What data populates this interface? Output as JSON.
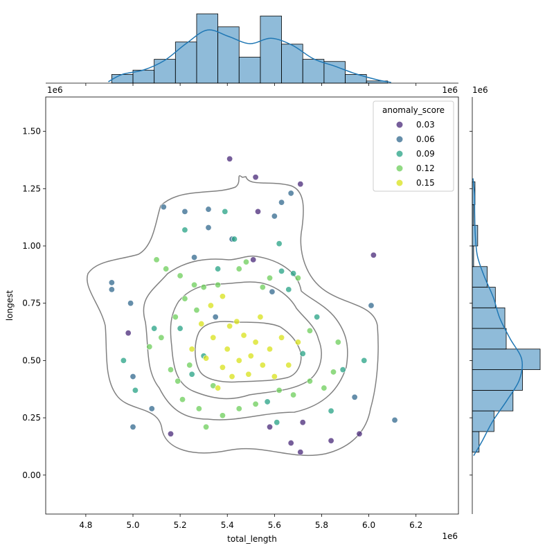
{
  "chart_data": {
    "type": "scatter",
    "subtype": "jointplot",
    "xlabel": "total_length",
    "ylabel": "longest",
    "x_offset_label": "1e6",
    "y_offset_label": "1e6",
    "xlim": [
      4.63,
      6.38
    ],
    "ylim": [
      -0.17,
      1.65
    ],
    "x_ticks": [
      "4.8",
      "5.0",
      "5.2",
      "5.4",
      "5.6",
      "5.8",
      "6.0",
      "6.2"
    ],
    "y_ticks": [
      "0.00",
      "0.25",
      "0.50",
      "0.75",
      "1.00",
      "1.25",
      "1.50"
    ],
    "legend": {
      "title": "anomaly_score",
      "placement": "top-right",
      "entries": [
        {
          "label": "0.03",
          "color": "#482878"
        },
        {
          "label": "0.06",
          "color": "#31688e"
        },
        {
          "label": "0.09",
          "color": "#26a184"
        },
        {
          "label": "0.12",
          "color": "#6cce59"
        },
        {
          "label": "0.15",
          "color": "#d8e219"
        }
      ]
    },
    "points": [
      [
        5.41,
        1.38,
        0.03
      ],
      [
        5.52,
        1.3,
        0.03
      ],
      [
        5.71,
        1.27,
        0.03
      ],
      [
        5.53,
        1.15,
        0.03
      ],
      [
        6.02,
        0.96,
        0.03
      ],
      [
        4.98,
        0.62,
        0.03
      ],
      [
        5.51,
        0.94,
        0.03
      ],
      [
        5.16,
        0.18,
        0.03
      ],
      [
        5.58,
        0.21,
        0.03
      ],
      [
        5.67,
        0.14,
        0.03
      ],
      [
        5.71,
        0.1,
        0.03
      ],
      [
        5.72,
        0.23,
        0.03
      ],
      [
        5.84,
        0.15,
        0.03
      ],
      [
        5.96,
        0.18,
        0.03
      ],
      [
        5.13,
        1.17,
        0.06
      ],
      [
        5.22,
        1.15,
        0.06
      ],
      [
        5.32,
        1.16,
        0.06
      ],
      [
        5.32,
        1.08,
        0.06
      ],
      [
        5.42,
        1.03,
        0.06
      ],
      [
        5.63,
        1.19,
        0.06
      ],
      [
        5.67,
        1.23,
        0.06
      ],
      [
        5.6,
        1.13,
        0.06
      ],
      [
        4.91,
        0.84,
        0.06
      ],
      [
        4.91,
        0.81,
        0.06
      ],
      [
        4.99,
        0.75,
        0.06
      ],
      [
        5.0,
        0.43,
        0.06
      ],
      [
        5.0,
        0.21,
        0.06
      ],
      [
        5.08,
        0.29,
        0.06
      ],
      [
        5.26,
        0.95,
        0.06
      ],
      [
        5.59,
        0.8,
        0.06
      ],
      [
        5.35,
        0.69,
        0.06
      ],
      [
        6.01,
        0.74,
        0.06
      ],
      [
        5.94,
        0.34,
        0.06
      ],
      [
        6.11,
        0.24,
        0.06
      ],
      [
        5.39,
        1.15,
        0.09
      ],
      [
        5.22,
        1.07,
        0.09
      ],
      [
        5.43,
        1.03,
        0.09
      ],
      [
        5.62,
        1.01,
        0.09
      ],
      [
        5.68,
        0.88,
        0.09
      ],
      [
        4.96,
        0.5,
        0.09
      ],
      [
        5.09,
        0.64,
        0.09
      ],
      [
        5.2,
        0.64,
        0.09
      ],
      [
        5.36,
        0.9,
        0.09
      ],
      [
        5.63,
        0.89,
        0.09
      ],
      [
        5.66,
        0.81,
        0.09
      ],
      [
        5.3,
        0.52,
        0.09
      ],
      [
        5.57,
        0.32,
        0.09
      ],
      [
        5.89,
        0.46,
        0.09
      ],
      [
        5.98,
        0.5,
        0.09
      ],
      [
        5.84,
        0.28,
        0.09
      ],
      [
        5.78,
        0.69,
        0.09
      ],
      [
        5.01,
        0.37,
        0.09
      ],
      [
        5.25,
        0.44,
        0.09
      ],
      [
        5.61,
        0.23,
        0.09
      ],
      [
        5.72,
        0.53,
        0.09
      ],
      [
        5.1,
        0.94,
        0.12
      ],
      [
        5.14,
        0.9,
        0.12
      ],
      [
        5.2,
        0.87,
        0.12
      ],
      [
        5.26,
        0.83,
        0.12
      ],
      [
        5.3,
        0.82,
        0.12
      ],
      [
        5.36,
        0.83,
        0.12
      ],
      [
        5.45,
        0.9,
        0.12
      ],
      [
        5.48,
        0.93,
        0.12
      ],
      [
        5.58,
        0.86,
        0.12
      ],
      [
        5.07,
        0.56,
        0.12
      ],
      [
        5.12,
        0.6,
        0.12
      ],
      [
        5.18,
        0.69,
        0.12
      ],
      [
        5.22,
        0.77,
        0.12
      ],
      [
        5.27,
        0.72,
        0.12
      ],
      [
        5.16,
        0.46,
        0.12
      ],
      [
        5.19,
        0.41,
        0.12
      ],
      [
        5.24,
        0.48,
        0.12
      ],
      [
        5.34,
        0.39,
        0.12
      ],
      [
        5.38,
        0.26,
        0.12
      ],
      [
        5.45,
        0.29,
        0.12
      ],
      [
        5.52,
        0.31,
        0.12
      ],
      [
        5.62,
        0.37,
        0.12
      ],
      [
        5.68,
        0.35,
        0.12
      ],
      [
        5.75,
        0.41,
        0.12
      ],
      [
        5.81,
        0.38,
        0.12
      ],
      [
        5.85,
        0.45,
        0.12
      ],
      [
        5.87,
        0.58,
        0.12
      ],
      [
        5.75,
        0.63,
        0.12
      ],
      [
        5.7,
        0.86,
        0.12
      ],
      [
        5.55,
        0.82,
        0.12
      ],
      [
        5.28,
        0.29,
        0.12
      ],
      [
        5.21,
        0.33,
        0.12
      ],
      [
        5.31,
        0.21,
        0.12
      ],
      [
        5.34,
        0.6,
        0.15
      ],
      [
        5.4,
        0.55,
        0.15
      ],
      [
        5.45,
        0.5,
        0.15
      ],
      [
        5.5,
        0.52,
        0.15
      ],
      [
        5.55,
        0.48,
        0.15
      ],
      [
        5.38,
        0.47,
        0.15
      ],
      [
        5.42,
        0.43,
        0.15
      ],
      [
        5.47,
        0.61,
        0.15
      ],
      [
        5.52,
        0.58,
        0.15
      ],
      [
        5.33,
        0.74,
        0.15
      ],
      [
        5.38,
        0.78,
        0.15
      ],
      [
        5.29,
        0.66,
        0.15
      ],
      [
        5.44,
        0.67,
        0.15
      ],
      [
        5.58,
        0.55,
        0.15
      ],
      [
        5.63,
        0.6,
        0.15
      ],
      [
        5.66,
        0.48,
        0.15
      ],
      [
        5.7,
        0.58,
        0.15
      ],
      [
        5.49,
        0.44,
        0.15
      ],
      [
        5.36,
        0.38,
        0.15
      ],
      [
        5.25,
        0.55,
        0.15
      ],
      [
        5.6,
        0.43,
        0.15
      ],
      [
        5.41,
        0.65,
        0.15
      ],
      [
        5.54,
        0.69,
        0.15
      ],
      [
        5.31,
        0.51,
        0.15
      ]
    ],
    "x_hist": {
      "bin_edges": [
        4.91,
        5.0,
        5.09,
        5.18,
        5.27,
        5.36,
        5.45,
        5.54,
        5.63,
        5.72,
        5.81,
        5.9,
        5.99,
        6.08
      ],
      "counts": [
        4,
        6,
        11,
        19,
        32,
        26,
        12,
        31,
        18,
        11,
        10,
        4,
        1
      ]
    },
    "y_hist": {
      "bin_edges": [
        0.1,
        0.19,
        0.28,
        0.37,
        0.46,
        0.55,
        0.64,
        0.73,
        0.82,
        0.91,
        1.0,
        1.09,
        1.18,
        1.28
      ],
      "counts": [
        5,
        16,
        30,
        37,
        50,
        25,
        24,
        17,
        11,
        1,
        4,
        1,
        2
      ]
    }
  }
}
